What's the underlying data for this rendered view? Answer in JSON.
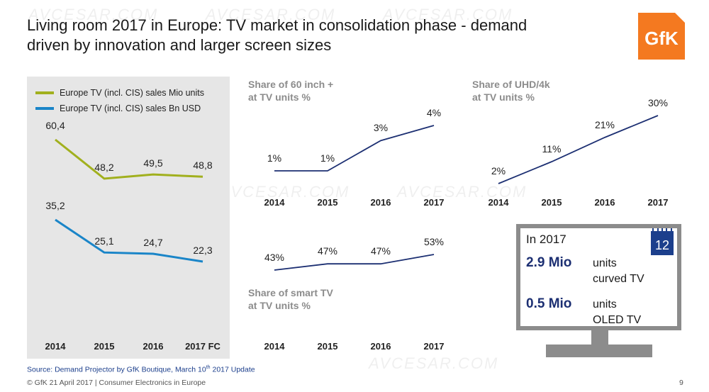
{
  "header": {
    "title_line1": "Living room 2017 in Europe: TV market in consolidation phase - demand",
    "title_line2": "driven by innovation and larger screen sizes",
    "logo_text": "GfK",
    "brand_color": "#f47920"
  },
  "watermark_text": "AVCESAR.COM",
  "chart_data": [
    {
      "type": "line",
      "categories": [
        "2014",
        "2015",
        "2016",
        "2017 FC"
      ],
      "series": [
        {
          "name": "Europe TV (incl. CIS) sales Mio units",
          "values": [
            60.4,
            48.2,
            49.5,
            48.8
          ],
          "labels": [
            "60,4",
            "48,2",
            "49,5",
            "48,8"
          ],
          "color": "#a1b01e"
        },
        {
          "name": "Europe TV (incl. CIS) sales Bn USD",
          "values": [
            35.2,
            25.1,
            24.7,
            22.3
          ],
          "labels": [
            "35,2",
            "25,1",
            "24,7",
            "22,3"
          ],
          "color": "#1a85c8"
        }
      ],
      "legend": "top-left"
    },
    {
      "type": "line",
      "title": "Share of 60 inch +\nat TV units %",
      "categories": [
        "2014",
        "2015",
        "2016",
        "2017"
      ],
      "series": [
        {
          "values": [
            1,
            1,
            3,
            4
          ],
          "labels": [
            "1%",
            "1%",
            "3%",
            "4%"
          ],
          "color": "#1c2f72"
        }
      ]
    },
    {
      "type": "line",
      "title": "Share of UHD/4k\nat TV units %",
      "categories": [
        "2014",
        "2015",
        "2016",
        "2017"
      ],
      "series": [
        {
          "values": [
            2,
            11,
            21,
            30
          ],
          "labels": [
            "2%",
            "11%",
            "21%",
            "30%"
          ],
          "color": "#1c2f72"
        }
      ]
    },
    {
      "type": "line",
      "title": "Share of smart TV\nat TV units %",
      "categories": [
        "2014",
        "2015",
        "2016",
        "2017"
      ],
      "series": [
        {
          "values": [
            43,
            47,
            47,
            53
          ],
          "labels": [
            "43%",
            "47%",
            "47%",
            "53%"
          ],
          "color": "#1c2f72"
        }
      ]
    }
  ],
  "infobox": {
    "heading": "In 2017",
    "calendar_day": "12",
    "curved_value": "2.9 Mio",
    "curved_unit": "units",
    "curved_label": "curved TV",
    "oled_value": "0.5 Mio",
    "oled_unit": "units",
    "oled_label": "OLED TV",
    "accent_color": "#1c2f72"
  },
  "footer": {
    "source_prefix": "Source: Demand Projector by GfK Boutique, March 10",
    "source_sup": "th",
    "source_suffix": "  2017 Update",
    "copyright": "© GfK 21 April 2017 | Consumer Electronics in Europe",
    "page_number": "9"
  }
}
